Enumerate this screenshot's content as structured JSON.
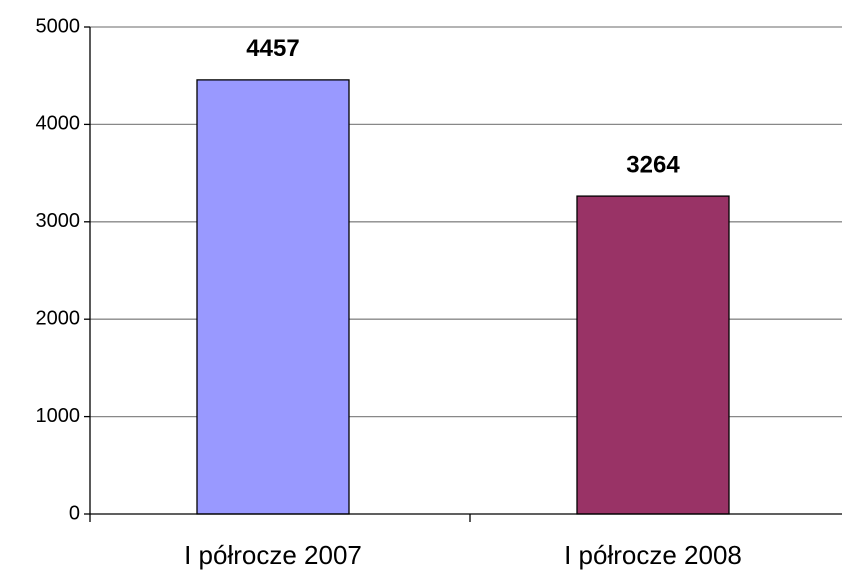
{
  "chart_data": {
    "type": "bar",
    "categories": [
      "I półrocze 2007",
      "I półrocze 2008"
    ],
    "values": [
      4457,
      3264
    ],
    "colors": [
      "#9999ff",
      "#993366"
    ],
    "ylim": [
      0,
      5000
    ],
    "yticks": [
      0,
      1000,
      2000,
      3000,
      4000,
      5000
    ],
    "grid": true
  }
}
